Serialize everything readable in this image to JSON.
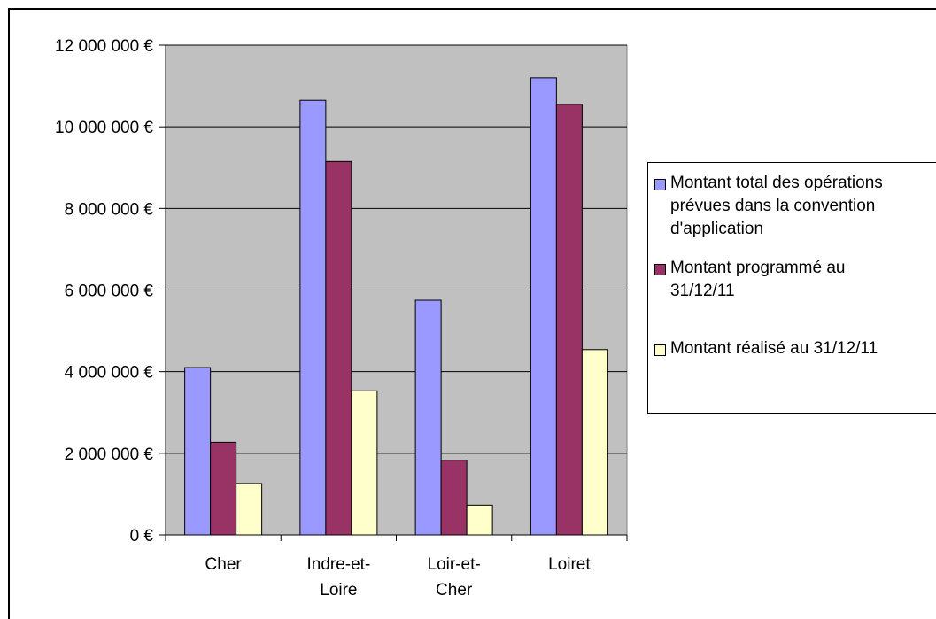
{
  "chart_data": {
    "type": "bar",
    "categories": [
      "Cher",
      "Indre-et-Loire",
      "Loir-et-Cher",
      "Loiret"
    ],
    "category_labels": [
      [
        "Cher"
      ],
      [
        "Indre-et-",
        "Loire"
      ],
      [
        "Loir-et-",
        "Cher"
      ],
      [
        "Loiret"
      ]
    ],
    "series": [
      {
        "name": "Montant total des opérations prévues dans la convention d'application",
        "color": "#9999ff",
        "values": [
          4100000,
          10650000,
          5750000,
          11200000
        ]
      },
      {
        "name": "Montant programmé au 31/12/11",
        "color": "#993366",
        "values": [
          2270000,
          9150000,
          1830000,
          10550000
        ]
      },
      {
        "name": "Montant réalisé au 31/12/11",
        "color": "#ffffcc",
        "values": [
          1260000,
          3530000,
          730000,
          4540000
        ]
      }
    ],
    "yticks": [
      "0 €",
      "2 000 000 €",
      "4 000 000 €",
      "6 000 000 €",
      "8 000 000 €",
      "10 000 000 €",
      "12 000 000 €"
    ],
    "ylim": [
      0,
      12000000
    ],
    "plot_background": "#c0c0c0",
    "grid": true,
    "legend_position": "right"
  },
  "legend": {
    "items": [
      {
        "lines": [
          "Montant total des opérations",
          "prévues dans la convention",
          "d'application"
        ],
        "color": "#9999ff"
      },
      {
        "lines": [
          "Montant programmé au",
          "31/12/11"
        ],
        "color": "#993366"
      },
      {
        "lines": [
          "Montant réalisé au 31/12/11"
        ],
        "color": "#ffffcc"
      }
    ]
  }
}
